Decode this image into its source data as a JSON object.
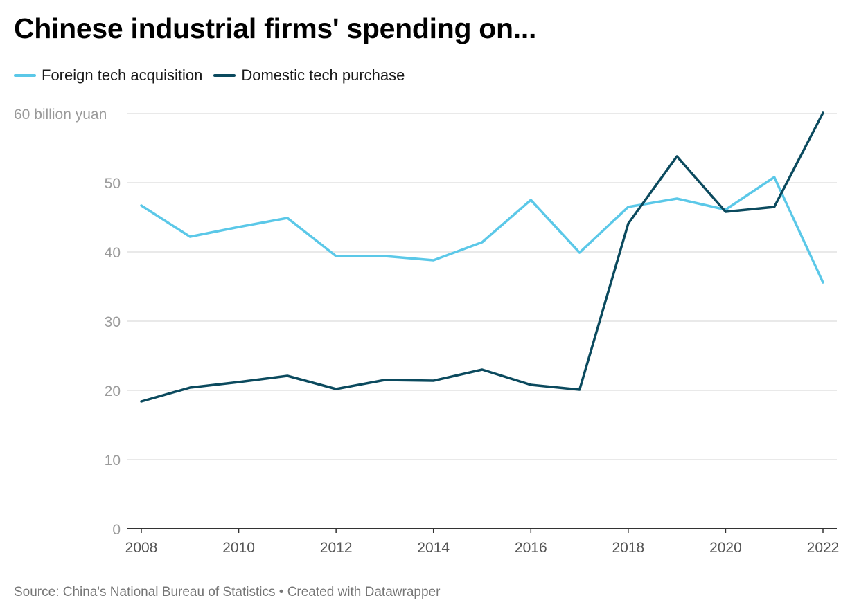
{
  "chart_data": {
    "type": "line",
    "title": "Chinese industrial firms' spending on...",
    "ylabel_unit": "billion yuan",
    "x": [
      2008,
      2009,
      2010,
      2011,
      2012,
      2013,
      2014,
      2015,
      2016,
      2017,
      2018,
      2019,
      2020,
      2021,
      2022
    ],
    "xticks": [
      "2008",
      "2010",
      "2012",
      "2014",
      "2016",
      "2018",
      "2020",
      "2022"
    ],
    "yticks": [
      "0",
      "10",
      "20",
      "30",
      "40",
      "50",
      "60 billion yuan"
    ],
    "ylim": [
      0,
      60
    ],
    "grid": true,
    "legend_position": "top-left",
    "series": [
      {
        "name": "Foreign tech acquisition",
        "color": "#5bc8e8",
        "values": [
          46.7,
          42.2,
          43.6,
          44.9,
          39.4,
          39.4,
          38.8,
          41.4,
          47.5,
          39.9,
          46.5,
          47.7,
          46.1,
          50.8,
          35.6
        ]
      },
      {
        "name": "Domestic tech purchase",
        "color": "#0b4a5e",
        "values": [
          18.4,
          20.4,
          21.2,
          22.1,
          20.2,
          21.5,
          21.4,
          23.0,
          20.8,
          20.1,
          44.1,
          53.8,
          45.8,
          46.5,
          60.1
        ]
      }
    ]
  },
  "footer": {
    "text": "Source: China's National Bureau of Statistics • Created with Datawrapper"
  }
}
